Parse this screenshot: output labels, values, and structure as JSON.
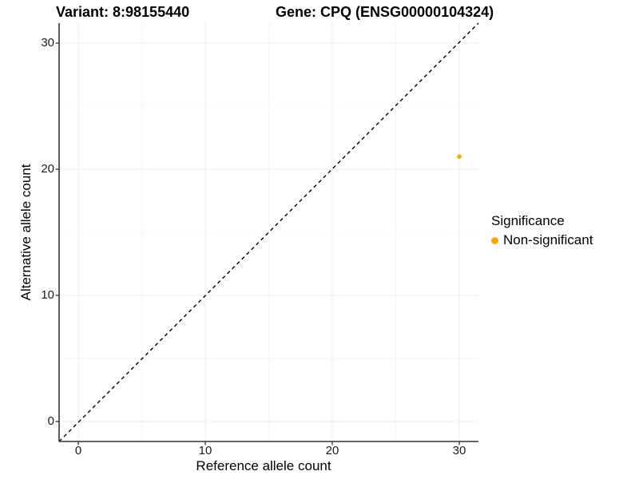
{
  "header": {
    "variant_title": "Variant: 8:98155440",
    "gene_title": "Gene: CPQ (ENSG00000104324)"
  },
  "legend": {
    "title": "Significance",
    "items": [
      {
        "label": "Non-significant",
        "color": "#FFA500"
      }
    ]
  },
  "chart_data": {
    "type": "scatter",
    "title": "Variant: 8:98155440   Gene: CPQ (ENSG00000104324)",
    "xlabel": "Reference allele count",
    "ylabel": "Alternative allele count",
    "xlim": [
      -1.5,
      31.5
    ],
    "ylim": [
      -1.5,
      31.5
    ],
    "x_ticks": [
      0,
      10,
      20,
      30
    ],
    "y_ticks": [
      0,
      10,
      20,
      30
    ],
    "x_minor_ticks": [
      5,
      15,
      25
    ],
    "y_minor_ticks": [
      5,
      15,
      25
    ],
    "grid": true,
    "legend_position": "right",
    "series": [
      {
        "name": "Non-significant",
        "color": "#FFA500",
        "points": [
          {
            "x": 30,
            "y": 21
          }
        ]
      }
    ],
    "reference_line": {
      "kind": "identity y=x",
      "style": "dashed",
      "color": "#000000"
    }
  },
  "colors": {
    "background": "#ffffff",
    "axis_line": "#333333",
    "tick_text": "#1a1a1a",
    "grid_major": "#ebebeb",
    "grid_minor": "#f4f4f4",
    "point": "#FFA500"
  }
}
